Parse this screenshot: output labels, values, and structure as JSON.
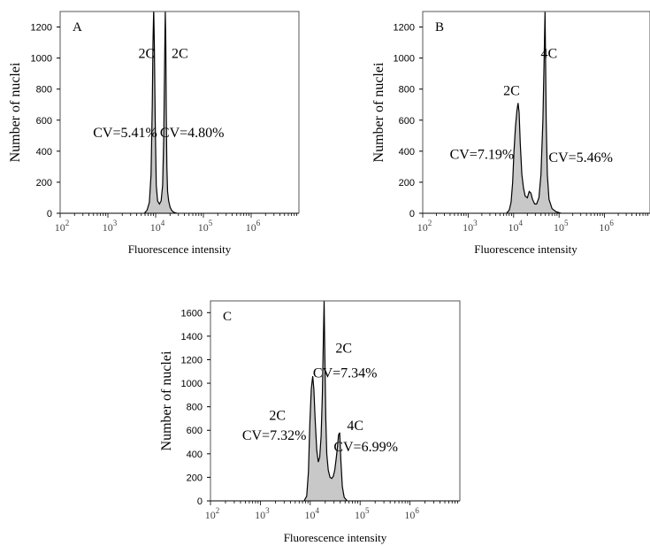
{
  "chart_data": [
    {
      "type": "area",
      "panel": "A",
      "xlabel": "Fluorescence intensity",
      "ylabel": "Number of nuclei",
      "xscale": "log",
      "xlim": [
        100,
        10000000
      ],
      "ylim": [
        0,
        1300
      ],
      "xticks": [
        {
          "value": 100,
          "base": "10",
          "exp": "2"
        },
        {
          "value": 1000,
          "base": "10",
          "exp": "3"
        },
        {
          "value": 10000,
          "base": "10",
          "exp": "4"
        },
        {
          "value": 100000,
          "base": "10",
          "exp": "5"
        },
        {
          "value": 1000000,
          "base": "10",
          "exp": "6"
        }
      ],
      "yticks": [
        0,
        200,
        400,
        600,
        800,
        1000,
        1200
      ],
      "fill_color": "#c8c8c8",
      "line_color": "#000000",
      "series": [
        {
          "x": [
            5800,
            6600,
            7400,
            8000,
            8500,
            8800,
            9100,
            9400,
            9800,
            10300,
            11000,
            12000,
            13000,
            14000,
            14800,
            15400,
            15900,
            16300,
            16700,
            17200,
            17800,
            18700,
            20000,
            21500,
            23000,
            25500,
            28000
          ],
          "y": [
            0,
            20,
            70,
            250,
            700,
            1100,
            1320,
            1100,
            600,
            180,
            80,
            60,
            80,
            180,
            500,
            950,
            1300,
            1100,
            650,
            300,
            140,
            80,
            40,
            20,
            10,
            3,
            0
          ]
        }
      ],
      "annotations": [
        {
          "text": "2C",
          "x": 6500,
          "y": 1000
        },
        {
          "text": "2C",
          "x": 32000,
          "y": 1000
        },
        {
          "text": "CV=5.41%",
          "x": 2300,
          "y": 490
        },
        {
          "text": "CV=4.80%",
          "x": 58000,
          "y": 490
        }
      ]
    },
    {
      "type": "area",
      "panel": "B",
      "xlabel": "Fluorescence intensity",
      "ylabel": "Number of nuclei",
      "xscale": "log",
      "xlim": [
        100,
        10000000
      ],
      "ylim": [
        0,
        1300
      ],
      "xticks": [
        {
          "value": 100,
          "base": "10",
          "exp": "2"
        },
        {
          "value": 1000,
          "base": "10",
          "exp": "3"
        },
        {
          "value": 10000,
          "base": "10",
          "exp": "4"
        },
        {
          "value": 100000,
          "base": "10",
          "exp": "5"
        },
        {
          "value": 1000000,
          "base": "10",
          "exp": "6"
        }
      ],
      "yticks": [
        0,
        200,
        400,
        600,
        800,
        1000,
        1200
      ],
      "fill_color": "#c8c8c8",
      "line_color": "#000000",
      "series": [
        {
          "x": [
            7000,
            8000,
            8800,
            9500,
            10200,
            11000,
            11800,
            12500,
            13200,
            14000,
            15200,
            16500,
            18000,
            20000,
            22000,
            24000,
            26000,
            29000,
            32000,
            36000,
            40000,
            44000,
            47000,
            49000,
            50500,
            52000,
            55000,
            60000,
            70000,
            85000,
            110000
          ],
          "y": [
            0,
            20,
            70,
            200,
            400,
            560,
            660,
            710,
            650,
            450,
            250,
            160,
            110,
            100,
            140,
            130,
            90,
            60,
            60,
            100,
            250,
            600,
            1000,
            1300,
            1000,
            600,
            250,
            90,
            30,
            10,
            0
          ]
        }
      ],
      "annotations": [
        {
          "text": "2C",
          "x": 9000,
          "y": 760
        },
        {
          "text": "4C",
          "x": 60000,
          "y": 1000
        },
        {
          "text": "CV=7.19%",
          "x": 2000,
          "y": 350
        },
        {
          "text": "CV=5.46%",
          "x": 300000,
          "y": 330
        }
      ]
    },
    {
      "type": "area",
      "panel": "C",
      "xlabel": "Fluorescence intensity",
      "ylabel": "Number of nuclei",
      "xscale": "log",
      "xlim": [
        100,
        10000000
      ],
      "ylim": [
        0,
        1700
      ],
      "xticks": [
        {
          "value": 100,
          "base": "10",
          "exp": "2"
        },
        {
          "value": 1000,
          "base": "10",
          "exp": "3"
        },
        {
          "value": 10000,
          "base": "10",
          "exp": "4"
        },
        {
          "value": 100000,
          "base": "10",
          "exp": "5"
        },
        {
          "value": 1000000,
          "base": "10",
          "exp": "6"
        }
      ],
      "yticks": [
        0,
        200,
        400,
        600,
        800,
        1000,
        1200,
        1400,
        1600
      ],
      "fill_color": "#c8c8c8",
      "line_color": "#000000",
      "series": [
        {
          "x": [
            7500,
            8500,
            9200,
            9800,
            10500,
            11200,
            11800,
            12500,
            13500,
            14500,
            15500,
            16500,
            17500,
            18300,
            19000,
            19700,
            20500,
            21500,
            23000,
            25000,
            27000,
            29000,
            31000,
            33000,
            35000,
            37000,
            39000,
            41000,
            44000,
            48000,
            55000
          ],
          "y": [
            0,
            40,
            250,
            650,
            950,
            1060,
            950,
            700,
            430,
            330,
            370,
            550,
            900,
            1350,
            1700,
            1200,
            700,
            400,
            260,
            200,
            190,
            210,
            260,
            350,
            450,
            560,
            580,
            350,
            120,
            30,
            0
          ]
        }
      ],
      "annotations": [
        {
          "text": "2C",
          "x": 2200,
          "y": 690
        },
        {
          "text": "CV=7.32%",
          "x": 1900,
          "y": 520
        },
        {
          "text": "2C",
          "x": 47000,
          "y": 1260
        },
        {
          "text": "CV=7.34%",
          "x": 50000,
          "y": 1050
        },
        {
          "text": "4C",
          "x": 80000,
          "y": 600
        },
        {
          "text": "CV=6.99%",
          "x": 130000,
          "y": 420
        }
      ]
    }
  ]
}
